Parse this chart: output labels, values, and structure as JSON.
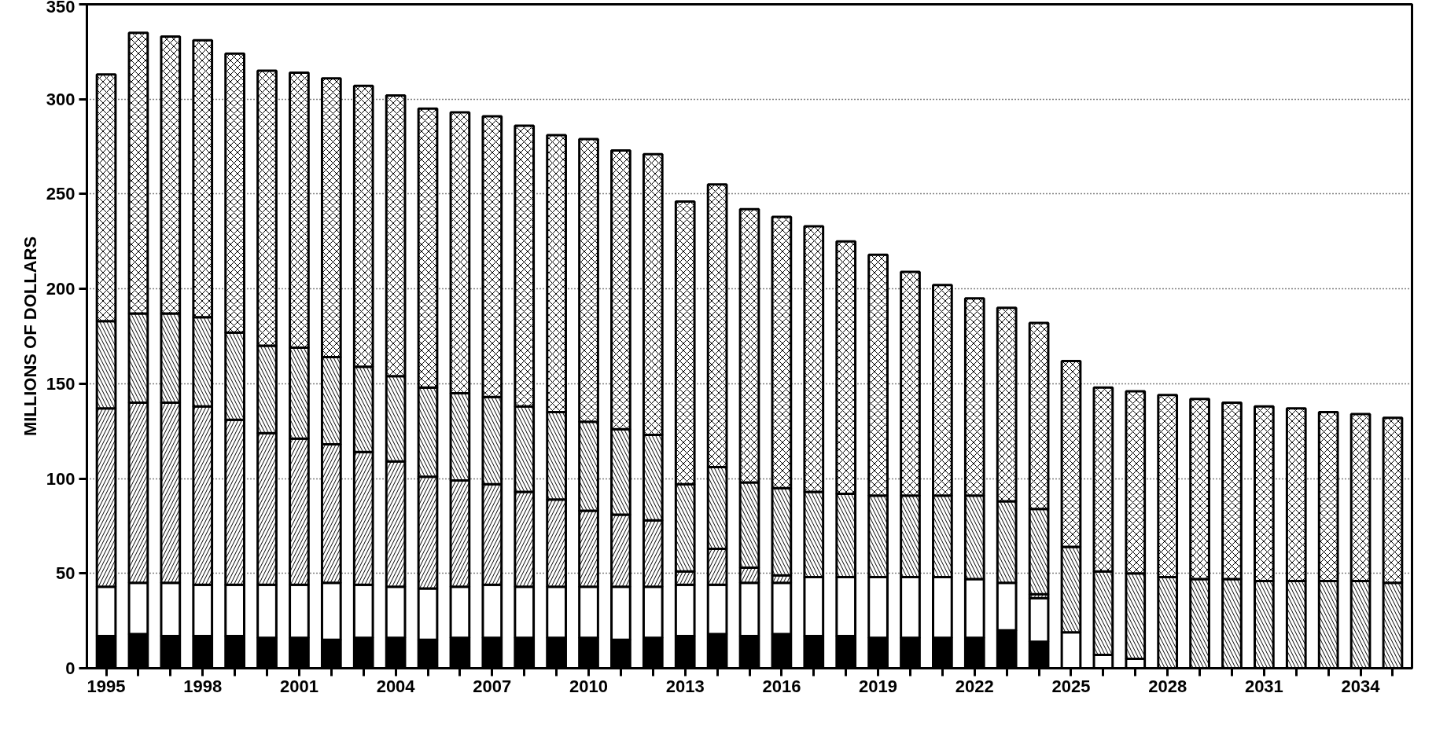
{
  "chart_data": {
    "type": "bar",
    "stacked": true,
    "ylabel": "MILLIONS OF DOLLARS",
    "categories": [
      "1995",
      null,
      null,
      "1998",
      null,
      null,
      "2001",
      null,
      null,
      "2004",
      null,
      null,
      "2007",
      null,
      null,
      "2010",
      null,
      null,
      "2013",
      null,
      null,
      "2016",
      null,
      null,
      "2019",
      null,
      null,
      "2022",
      null,
      null,
      "2025",
      null,
      null,
      "2028",
      null,
      null,
      "2031",
      null,
      null,
      "2034",
      null
    ],
    "series": [
      {
        "color": "#000000",
        "values": [
          17,
          18,
          17,
          17,
          17,
          16,
          16,
          15,
          16,
          16,
          15,
          16,
          16,
          16,
          16,
          16,
          15,
          16,
          17,
          18,
          17,
          18,
          17,
          17,
          16,
          16,
          16,
          16,
          20,
          14,
          0,
          0,
          0,
          0,
          0,
          0,
          0,
          0,
          0,
          0,
          0
        ]
      },
      {
        "color": "#ffffff",
        "values": [
          26,
          27,
          28,
          27,
          27,
          28,
          28,
          30,
          28,
          27,
          27,
          27,
          28,
          27,
          27,
          27,
          28,
          27,
          27,
          26,
          28,
          27,
          31,
          31,
          32,
          32,
          32,
          31,
          25,
          23,
          19,
          7,
          5,
          0,
          0,
          0,
          0,
          0,
          0,
          0,
          0
        ]
      },
      {
        "color": "#ffffff",
        "values": [
          94,
          95,
          95,
          94,
          87,
          80,
          77,
          73,
          70,
          66,
          59,
          56,
          53,
          50,
          46,
          40,
          38,
          35,
          7,
          19,
          8,
          4,
          0,
          0,
          0,
          0,
          0,
          0,
          0,
          2,
          0,
          0,
          0,
          0,
          0,
          0,
          0,
          0,
          0,
          0,
          0
        ]
      },
      {
        "color": "#ffffff",
        "values": [
          46,
          47,
          47,
          47,
          46,
          46,
          48,
          46,
          45,
          45,
          47,
          46,
          46,
          45,
          46,
          47,
          45,
          45,
          46,
          43,
          45,
          46,
          45,
          44,
          43,
          43,
          43,
          44,
          43,
          45,
          45,
          44,
          45,
          48,
          47,
          47,
          46,
          46,
          46,
          46,
          45
        ]
      },
      {
        "color": "#ffffff",
        "values": [
          130,
          148,
          146,
          146,
          147,
          145,
          145,
          147,
          148,
          148,
          147,
          148,
          148,
          148,
          146,
          149,
          147,
          148,
          149,
          149,
          144,
          143,
          140,
          133,
          127,
          118,
          111,
          104,
          102,
          98,
          98,
          97,
          96,
          96,
          95,
          93,
          92,
          91,
          89,
          88,
          87
        ]
      }
    ],
    "ylim": [
      0,
      350
    ],
    "yticks": [
      0,
      50,
      100,
      150,
      200,
      250,
      300,
      350
    ],
    "grid": "y"
  }
}
